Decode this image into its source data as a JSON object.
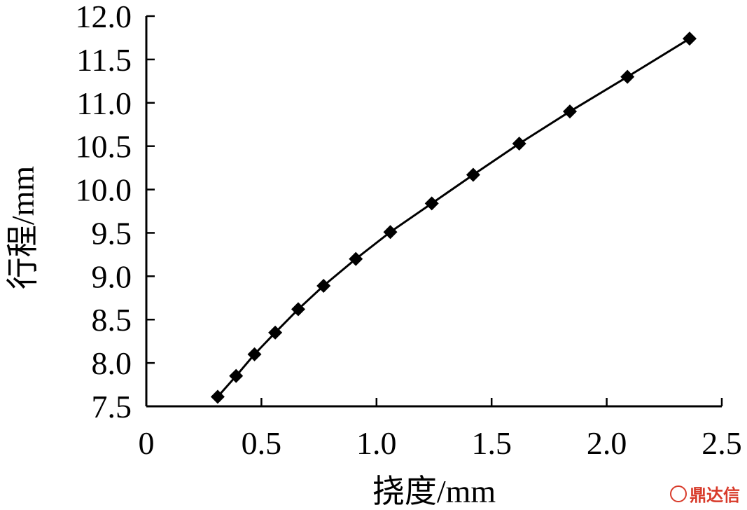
{
  "chart_data": {
    "type": "line",
    "title": "",
    "xlabel": "挠度/mm",
    "ylabel": "行程/mm",
    "xlim": [
      0,
      2.5
    ],
    "ylim": [
      7.5,
      12.0
    ],
    "xticks": [
      0,
      0.5,
      1.0,
      1.5,
      2.0,
      2.5
    ],
    "xtick_labels": [
      "0",
      "0.5",
      "1.0",
      "1.5",
      "2.0",
      "2.5"
    ],
    "yticks": [
      7.5,
      8.0,
      8.5,
      9.0,
      9.5,
      10.0,
      10.5,
      11.0,
      11.5,
      12.0
    ],
    "ytick_labels": [
      "7.5",
      "8.0",
      "8.5",
      "9.0",
      "9.5",
      "10.0",
      "10.5",
      "11.0",
      "11.5",
      "12.0"
    ],
    "grid": false,
    "marker": "diamond",
    "color": "#000000",
    "series": [
      {
        "x": [
          0.31,
          0.39,
          0.47,
          0.56,
          0.66,
          0.77,
          0.91,
          1.06,
          1.24,
          1.42,
          1.62,
          1.84,
          2.09,
          2.36
        ],
        "y": [
          7.61,
          7.85,
          8.1,
          8.35,
          8.62,
          8.89,
          9.2,
          9.51,
          9.84,
          10.17,
          10.53,
          10.9,
          11.3,
          11.74
        ]
      }
    ]
  },
  "watermark": {
    "text": "鼎达信"
  }
}
